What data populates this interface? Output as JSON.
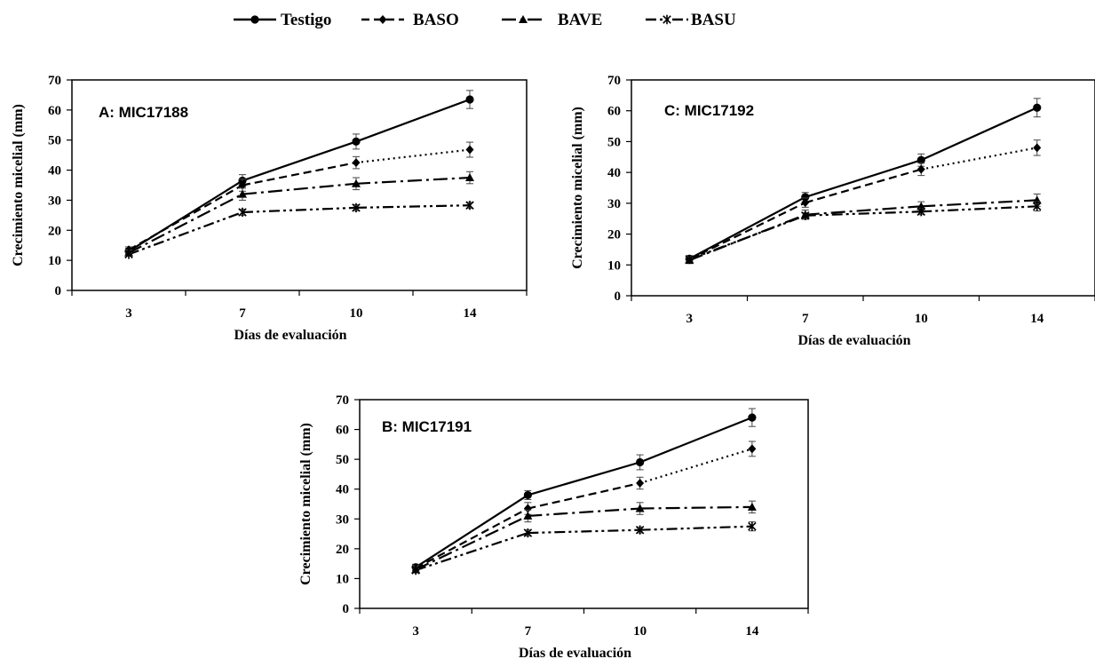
{
  "colors": {
    "line": "#000000",
    "frame": "#000000",
    "background": "#ffffff"
  },
  "legend": [
    {
      "label": "Testigo",
      "marker": "circle",
      "dash": "solid"
    },
    {
      "label": "BASO",
      "marker": "diamond",
      "dash": "dash"
    },
    {
      "label": "BAVE",
      "marker": "triangle",
      "dash": "dashdot"
    },
    {
      "label": "BASU",
      "marker": "asterisk",
      "dash": "dashdotdot"
    }
  ],
  "chart_data": [
    {
      "type": "line",
      "title": "A: MIC17188",
      "xlabel": "Días de evaluación",
      "ylabel": "Crecimiento micelial  (mm)",
      "categories": [
        "3",
        "7",
        "10",
        "14"
      ],
      "yticks": [
        "0",
        "10",
        "20",
        "30",
        "40",
        "50",
        "60",
        "70"
      ],
      "ylim": [
        0,
        70
      ],
      "grid": false,
      "legend_position": "top",
      "series": [
        {
          "name": "Testigo",
          "values": [
            13,
            36.5,
            49.5,
            63.5
          ],
          "err": [
            1,
            2,
            2.5,
            3
          ]
        },
        {
          "name": "BASO",
          "values": [
            13.5,
            35,
            42.5,
            46.8
          ],
          "err": [
            1,
            2,
            2,
            2.5
          ]
        },
        {
          "name": "BAVE",
          "values": [
            12.5,
            32,
            35.5,
            37.5
          ],
          "err": [
            1,
            2,
            2,
            2
          ]
        },
        {
          "name": "BASU",
          "values": [
            12,
            26,
            27.5,
            28.3
          ],
          "err": [
            0.5,
            1,
            1,
            1
          ]
        }
      ]
    },
    {
      "type": "line",
      "title": "C: MIC17192",
      "xlabel": "Días de evaluación",
      "ylabel": "Crecimiento micelial  (mm)",
      "categories": [
        "3",
        "7",
        "10",
        "14"
      ],
      "yticks": [
        "0",
        "10",
        "20",
        "30",
        "40",
        "50",
        "60",
        "70"
      ],
      "ylim": [
        0,
        70
      ],
      "grid": false,
      "legend_position": "top",
      "series": [
        {
          "name": "Testigo",
          "values": [
            12,
            32,
            44,
            61
          ],
          "err": [
            1,
            1.5,
            2,
            3
          ]
        },
        {
          "name": "BASO",
          "values": [
            11.8,
            30.2,
            41,
            48
          ],
          "err": [
            1,
            1.5,
            2,
            2.5
          ]
        },
        {
          "name": "BAVE",
          "values": [
            11.5,
            26.3,
            29,
            31
          ],
          "err": [
            1,
            1.5,
            1.5,
            2
          ]
        },
        {
          "name": "BASU",
          "values": [
            11.8,
            26,
            27.3,
            29
          ],
          "err": [
            0.5,
            1,
            1,
            1.5
          ]
        }
      ]
    },
    {
      "type": "line",
      "title": "B: MIC17191",
      "xlabel": "Días de evaluación",
      "ylabel": "Crecimiento micelial  (mm)",
      "categories": [
        "3",
        "7",
        "10",
        "14"
      ],
      "yticks": [
        "0",
        "10",
        "20",
        "30",
        "40",
        "50",
        "60",
        "70"
      ],
      "ylim": [
        0,
        70
      ],
      "grid": false,
      "legend_position": "top",
      "series": [
        {
          "name": "Testigo",
          "values": [
            13.8,
            38,
            49,
            64
          ],
          "err": [
            1,
            1.5,
            2.5,
            3
          ]
        },
        {
          "name": "BASO",
          "values": [
            13.5,
            33.5,
            42,
            53.5
          ],
          "err": [
            1,
            2,
            2,
            2.5
          ]
        },
        {
          "name": "BAVE",
          "values": [
            13,
            31,
            33.5,
            34
          ],
          "err": [
            1,
            2,
            2,
            2
          ]
        },
        {
          "name": "BASU",
          "values": [
            12.8,
            25.3,
            26.3,
            27.5
          ],
          "err": [
            0.5,
            1,
            1,
            1.5
          ]
        }
      ]
    }
  ]
}
